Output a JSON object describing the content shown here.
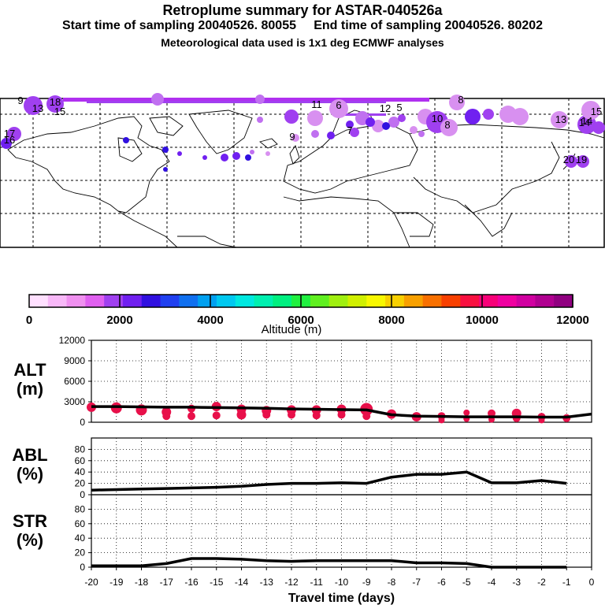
{
  "header": {
    "title": "Retroplume summary for ASTAR-040526a",
    "start_label": "Start time of sampling 20040526. 80055",
    "end_label": "End time of sampling 20040526. 80202",
    "met_label": "Meteorological data used is 1x1 deg ECMWF analyses"
  },
  "colorbar": {
    "title": "Altitude (m)",
    "ticks": [
      "0",
      "2000",
      "4000",
      "6000",
      "8000",
      "10000",
      "12000"
    ],
    "colors": [
      "#ffe0ff",
      "#f8b8f8",
      "#f090f0",
      "#e060f0",
      "#a040f0",
      "#7020f0",
      "#3010e0",
      "#2040f0",
      "#1070f0",
      "#00a0f0",
      "#00c8f0",
      "#00e8e0",
      "#00f0b0",
      "#00f080",
      "#20f040",
      "#60f020",
      "#a0f010",
      "#d0f000",
      "#f8f800",
      "#f8d000",
      "#f8a000",
      "#f87000",
      "#f84000",
      "#f81040",
      "#f80078",
      "#f000a0",
      "#d000a0",
      "#b00090",
      "#900080"
    ]
  },
  "map": {
    "numbers": [
      "9",
      "13",
      "18",
      "15",
      "17",
      "16",
      "11",
      "6",
      "12",
      "5",
      "8",
      "10",
      "14",
      "13",
      "14",
      "15",
      "20",
      "19",
      "8",
      "9",
      "7"
    ]
  },
  "chart_data": [
    {
      "type": "line",
      "label_line1": "ALT",
      "label_line2": "(m)",
      "ylim": [
        0,
        12000
      ],
      "yticks": [
        "12000",
        "9000",
        "6000",
        "3000",
        "0"
      ],
      "xlim": [
        -20,
        0
      ],
      "x": [
        -20,
        -19,
        -18,
        -17,
        -16,
        -15,
        -14,
        -13,
        -12,
        -11,
        -10,
        -9,
        -8,
        -7,
        -6,
        -5,
        -4,
        -3,
        -2,
        -1,
        0
      ],
      "y": [
        2300,
        2300,
        2250,
        2200,
        2200,
        2150,
        2100,
        2050,
        1950,
        1900,
        1850,
        1800,
        1100,
        900,
        850,
        800,
        800,
        800,
        750,
        750,
        1200
      ],
      "markers": [
        {
          "x": -20,
          "y": 2200,
          "r": 6
        },
        {
          "x": -19,
          "y": 2100,
          "r": 7
        },
        {
          "x": -18,
          "y": 1800,
          "r": 7
        },
        {
          "x": -17,
          "y": 1500,
          "r": 6
        },
        {
          "x": -17,
          "y": 900,
          "r": 5
        },
        {
          "x": -16,
          "y": 2000,
          "r": 5
        },
        {
          "x": -16,
          "y": 900,
          "r": 5
        },
        {
          "x": -15,
          "y": 2300,
          "r": 6
        },
        {
          "x": -15,
          "y": 1000,
          "r": 5
        },
        {
          "x": -14,
          "y": 1900,
          "r": 6
        },
        {
          "x": -14,
          "y": 1100,
          "r": 6
        },
        {
          "x": -13,
          "y": 1700,
          "r": 6
        },
        {
          "x": -13,
          "y": 1100,
          "r": 5
        },
        {
          "x": -12,
          "y": 1800,
          "r": 6
        },
        {
          "x": -12,
          "y": 1100,
          "r": 5
        },
        {
          "x": -11,
          "y": 1800,
          "r": 6
        },
        {
          "x": -11,
          "y": 1000,
          "r": 5
        },
        {
          "x": -10,
          "y": 1900,
          "r": 6
        },
        {
          "x": -10,
          "y": 1100,
          "r": 5
        },
        {
          "x": -9,
          "y": 1900,
          "r": 8
        },
        {
          "x": -9,
          "y": 900,
          "r": 5
        },
        {
          "x": -8,
          "y": 1200,
          "r": 6
        },
        {
          "x": -7,
          "y": 800,
          "r": 6
        },
        {
          "x": -6,
          "y": 900,
          "r": 5
        },
        {
          "x": -6,
          "y": 300,
          "r": 4
        },
        {
          "x": -5,
          "y": 1400,
          "r": 4
        },
        {
          "x": -5,
          "y": 500,
          "r": 4
        },
        {
          "x": -4,
          "y": 1300,
          "r": 5
        },
        {
          "x": -4,
          "y": 400,
          "r": 4
        },
        {
          "x": -3,
          "y": 1300,
          "r": 6
        },
        {
          "x": -3,
          "y": 600,
          "r": 5
        },
        {
          "x": -2,
          "y": 800,
          "r": 5
        },
        {
          "x": -2,
          "y": 300,
          "r": 4
        },
        {
          "x": -1,
          "y": 600,
          "r": 5
        }
      ],
      "marker_color": "#e8104a"
    },
    {
      "type": "line",
      "label_line1": "ABL",
      "label_line2": "(%)",
      "ylim": [
        0,
        100
      ],
      "yticks": [
        "80",
        "60",
        "40",
        "20",
        "0"
      ],
      "xlim": [
        -20,
        0
      ],
      "x": [
        -20,
        -19,
        -18,
        -17,
        -16,
        -15,
        -14,
        -13,
        -12,
        -11,
        -10,
        -9,
        -8,
        -7,
        -6,
        -5,
        -4,
        -3,
        -2,
        -1
      ],
      "y": [
        8,
        9,
        10,
        11,
        12,
        13,
        15,
        18,
        20,
        20,
        21,
        20,
        31,
        36,
        36,
        40,
        21,
        21,
        25,
        20
      ]
    },
    {
      "type": "line",
      "label_line1": "STR",
      "label_line2": "(%)",
      "ylim": [
        0,
        100
      ],
      "yticks": [
        "80",
        "60",
        "40",
        "20",
        "0"
      ],
      "xlim": [
        -20,
        0
      ],
      "x": [
        -20,
        -19,
        -18,
        -17,
        -16,
        -15,
        -14,
        -13,
        -12,
        -11,
        -10,
        -9,
        -8,
        -7,
        -6,
        -5,
        -4,
        -3,
        -2,
        -1
      ],
      "y": [
        2,
        2,
        2,
        5,
        12,
        12,
        11,
        9,
        8,
        9,
        9,
        9,
        9,
        6,
        6,
        5,
        0,
        0,
        0,
        0
      ],
      "xticklabels": [
        "-20",
        "-19",
        "-18",
        "-17",
        "-16",
        "-15",
        "-14",
        "-13",
        "-12",
        "-11",
        "-10",
        "-9",
        "-8",
        "-7",
        "-6",
        "-5",
        "-4",
        "-3",
        "-2",
        "-1",
        "0"
      ],
      "xlabel": "Travel time (days)"
    }
  ]
}
